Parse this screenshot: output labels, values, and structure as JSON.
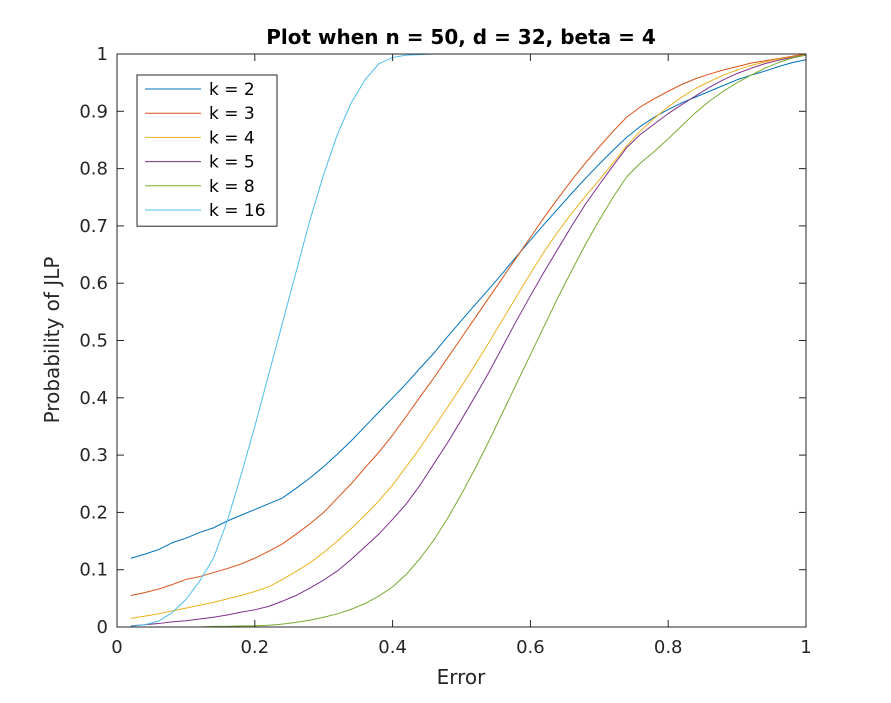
{
  "chart_data": {
    "type": "line",
    "title": "Plot when n = 50, d = 32, beta = 4",
    "xlabel": "Error",
    "ylabel": "Probability of JLP",
    "xlim": [
      0,
      1
    ],
    "ylim": [
      0,
      1
    ],
    "xticks": [
      0,
      0.2,
      0.4,
      0.6,
      0.8,
      1
    ],
    "xtick_labels": [
      "0",
      "0.2",
      "0.4",
      "0.6",
      "0.8",
      "1"
    ],
    "yticks": [
      0,
      0.1,
      0.2,
      0.3,
      0.4,
      0.5,
      0.6,
      0.7,
      0.8,
      0.9,
      1
    ],
    "ytick_labels": [
      "0",
      "0.1",
      "0.2",
      "0.3",
      "0.4",
      "0.5",
      "0.6",
      "0.7",
      "0.8",
      "0.9",
      "1"
    ],
    "grid": false,
    "legend_position": "top-left",
    "x": [
      0.02,
      0.04,
      0.06,
      0.08,
      0.1,
      0.12,
      0.14,
      0.16,
      0.18,
      0.2,
      0.22,
      0.24,
      0.26,
      0.28,
      0.3,
      0.32,
      0.34,
      0.36,
      0.38,
      0.4,
      0.42,
      0.44,
      0.46,
      0.48,
      0.5,
      0.52,
      0.54,
      0.56,
      0.58,
      0.6,
      0.62,
      0.64,
      0.66,
      0.68,
      0.7,
      0.72,
      0.74,
      0.76,
      0.78,
      0.8,
      0.82,
      0.84,
      0.86,
      0.88,
      0.9,
      0.92,
      0.94,
      0.96,
      0.98,
      1.0
    ],
    "series": [
      {
        "name": "k = 2",
        "color": "#0072BD",
        "values": [
          0.12,
          0.127,
          0.135,
          0.147,
          0.155,
          0.165,
          0.173,
          0.185,
          0.195,
          0.205,
          0.215,
          0.225,
          0.242,
          0.26,
          0.28,
          0.302,
          0.325,
          0.35,
          0.375,
          0.4,
          0.425,
          0.452,
          0.478,
          0.507,
          0.535,
          0.563,
          0.59,
          0.618,
          0.647,
          0.675,
          0.703,
          0.73,
          0.757,
          0.783,
          0.808,
          0.832,
          0.855,
          0.874,
          0.89,
          0.903,
          0.915,
          0.925,
          0.935,
          0.945,
          0.955,
          0.963,
          0.97,
          0.978,
          0.985,
          0.99
        ]
      },
      {
        "name": "k = 3",
        "color": "#D95319",
        "values": [
          0.055,
          0.06,
          0.066,
          0.074,
          0.083,
          0.088,
          0.095,
          0.102,
          0.11,
          0.12,
          0.132,
          0.145,
          0.162,
          0.18,
          0.2,
          0.225,
          0.25,
          0.278,
          0.305,
          0.335,
          0.368,
          0.402,
          0.435,
          0.47,
          0.505,
          0.54,
          0.575,
          0.61,
          0.645,
          0.68,
          0.715,
          0.748,
          0.78,
          0.81,
          0.838,
          0.865,
          0.89,
          0.908,
          0.922,
          0.935,
          0.947,
          0.957,
          0.965,
          0.972,
          0.978,
          0.984,
          0.988,
          0.992,
          0.996,
          1.0
        ]
      },
      {
        "name": "k = 4",
        "color": "#EDB120",
        "values": [
          0.015,
          0.019,
          0.023,
          0.028,
          0.033,
          0.038,
          0.043,
          0.049,
          0.055,
          0.062,
          0.07,
          0.083,
          0.097,
          0.112,
          0.13,
          0.15,
          0.172,
          0.195,
          0.22,
          0.248,
          0.28,
          0.313,
          0.348,
          0.384,
          0.42,
          0.458,
          0.497,
          0.537,
          0.577,
          0.617,
          0.655,
          0.69,
          0.722,
          0.752,
          0.78,
          0.81,
          0.84,
          0.866,
          0.888,
          0.908,
          0.925,
          0.94,
          0.952,
          0.963,
          0.972,
          0.98,
          0.986,
          0.991,
          0.995,
          0.998
        ]
      },
      {
        "name": "k = 5",
        "color": "#7E2F8E",
        "values": [
          0.002,
          0.004,
          0.006,
          0.009,
          0.011,
          0.014,
          0.017,
          0.021,
          0.026,
          0.03,
          0.036,
          0.045,
          0.055,
          0.068,
          0.082,
          0.098,
          0.118,
          0.14,
          0.162,
          0.188,
          0.215,
          0.248,
          0.285,
          0.322,
          0.362,
          0.403,
          0.445,
          0.49,
          0.535,
          0.578,
          0.62,
          0.66,
          0.7,
          0.738,
          0.772,
          0.805,
          0.837,
          0.86,
          0.878,
          0.896,
          0.912,
          0.927,
          0.942,
          0.955,
          0.966,
          0.975,
          0.983,
          0.989,
          0.994,
          0.998
        ]
      },
      {
        "name": "k = 8",
        "color": "#77AC30",
        "values": [
          0.0,
          0.0,
          0.0,
          0.0,
          0.0,
          0.0,
          0.001,
          0.001,
          0.002,
          0.002,
          0.003,
          0.005,
          0.008,
          0.012,
          0.017,
          0.023,
          0.031,
          0.041,
          0.054,
          0.07,
          0.092,
          0.12,
          0.152,
          0.19,
          0.232,
          0.277,
          0.325,
          0.375,
          0.425,
          0.475,
          0.525,
          0.575,
          0.622,
          0.668,
          0.71,
          0.75,
          0.786,
          0.81,
          0.83,
          0.852,
          0.875,
          0.898,
          0.918,
          0.935,
          0.95,
          0.963,
          0.975,
          0.985,
          0.993,
          0.998
        ]
      },
      {
        "name": "k = 16",
        "color": "#4DBEEE",
        "values": [
          0.001,
          0.004,
          0.01,
          0.025,
          0.048,
          0.08,
          0.12,
          0.185,
          0.265,
          0.35,
          0.44,
          0.53,
          0.62,
          0.71,
          0.79,
          0.86,
          0.915,
          0.955,
          0.983,
          0.994,
          0.998,
          0.999,
          1.0,
          1.0,
          1.0,
          1.0,
          1.0,
          1.0,
          1.0,
          1.0,
          1.0,
          1.0,
          1.0,
          1.0,
          1.0,
          1.0,
          1.0,
          1.0,
          1.0,
          1.0,
          1.0,
          1.0,
          1.0,
          1.0,
          1.0,
          1.0,
          1.0,
          1.0,
          1.0,
          1.0
        ]
      }
    ]
  }
}
